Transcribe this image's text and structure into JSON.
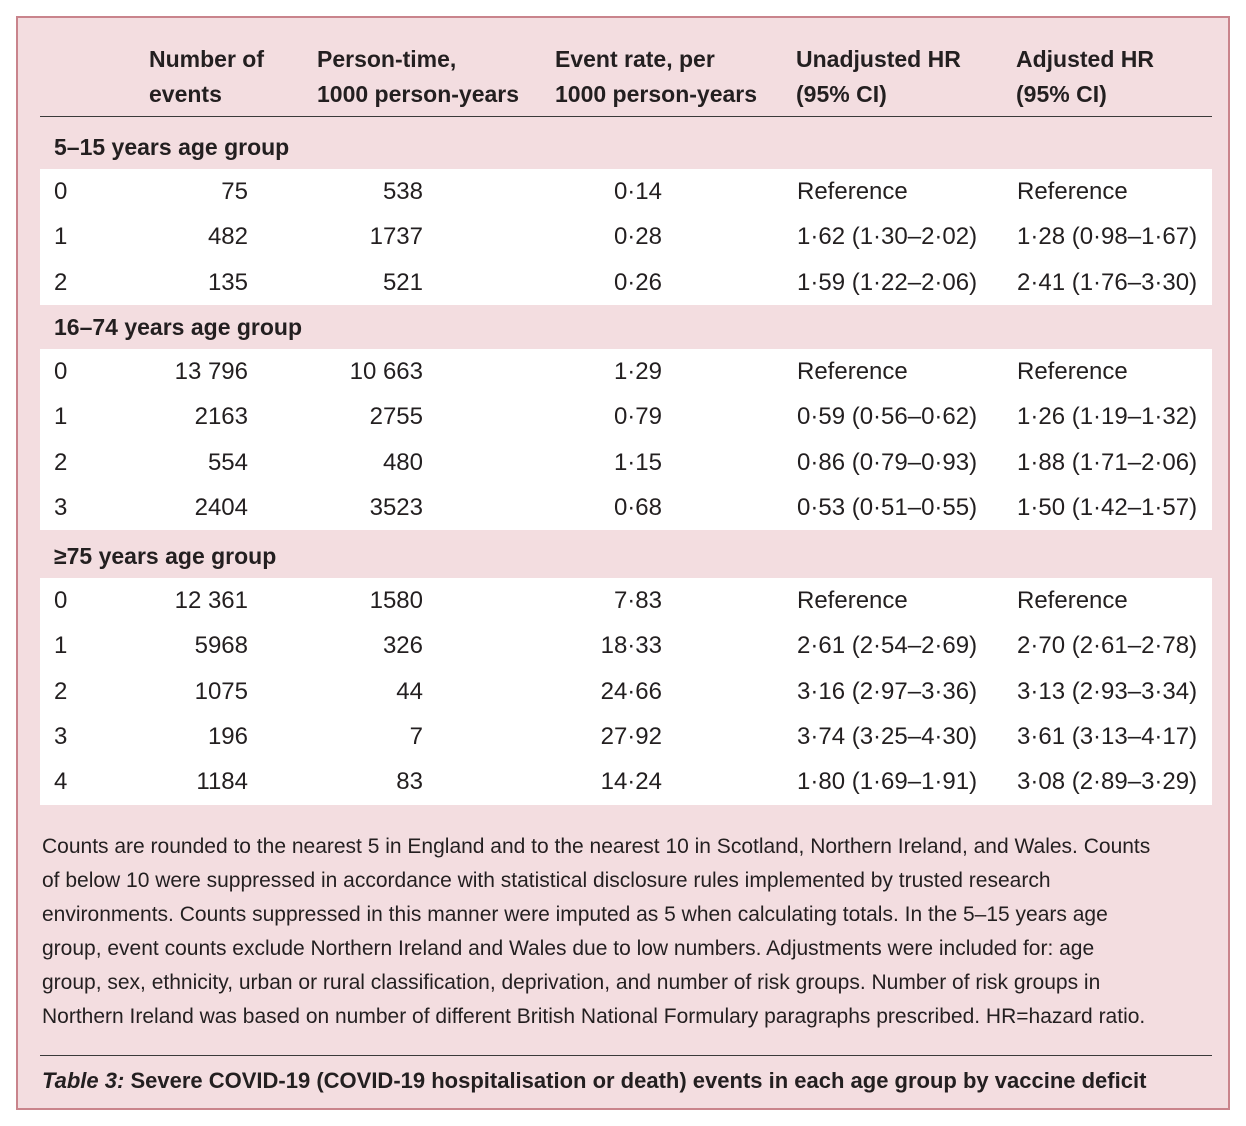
{
  "headers": {
    "events": [
      "Number of",
      "events"
    ],
    "person_time": [
      "Person-time,",
      "1000 person-years"
    ],
    "event_rate": [
      "Event rate, per",
      "1000 person-years"
    ],
    "unadjusted": [
      "Unadjusted HR",
      "(95% CI)"
    ],
    "adjusted": [
      "Adjusted HR",
      "(95% CI)"
    ]
  },
  "groups": [
    {
      "label": "5–15 years age group",
      "rows": [
        [
          "0",
          "75",
          "538",
          "0·14",
          "Reference",
          "Reference"
        ],
        [
          "1",
          "482",
          "1737",
          "0·28",
          "1·62 (1·30–2·02)",
          "1·28 (0·98–1·67)"
        ],
        [
          "2",
          "135",
          "521",
          "0·26",
          "1·59 (1·22–2·06)",
          "2·41 (1·76–3·30)"
        ]
      ]
    },
    {
      "label": "16–74 years age group",
      "rows": [
        [
          "0",
          "13 796",
          "10 663",
          "1·29",
          "Reference",
          "Reference"
        ],
        [
          "1",
          "2163",
          "2755",
          "0·79",
          "0·59 (0·56–0·62)",
          "1·26 (1·19–1·32)"
        ],
        [
          "2",
          "554",
          "480",
          "1·15",
          "0·86 (0·79–0·93)",
          "1·88 (1·71–2·06)"
        ],
        [
          "3",
          "2404",
          "3523",
          "0·68",
          "0·53 (0·51–0·55)",
          "1·50 (1·42–1·57)"
        ]
      ]
    },
    {
      "label": "≥75 years age group",
      "rows": [
        [
          "0",
          "12 361",
          "1580",
          "7·83",
          "Reference",
          "Reference"
        ],
        [
          "1",
          "5968",
          "326",
          "18·33",
          "2·61 (2·54–2·69)",
          "2·70 (2·61–2·78)"
        ],
        [
          "2",
          "1075",
          "44",
          "24·66",
          "3·16 (2·97–3·36)",
          "3·13 (2·93–3·34)"
        ],
        [
          "3",
          "196",
          "7",
          "27·92",
          "3·74 (3·25–4·30)",
          "3·61 (3·13–4·17)"
        ],
        [
          "4",
          "1184",
          "83",
          "14·24",
          "1·80 (1·69–1·91)",
          "3·08 (2·89–3·29)"
        ]
      ]
    }
  ],
  "footnote": [
    "Counts are rounded to the nearest 5 in England and to the nearest 10 in Scotland, Northern Ireland, and Wales. Counts",
    "of below 10 were suppressed in accordance with statistical disclosure rules implemented by trusted research",
    "environments. Counts suppressed in this manner were imputed as 5 when calculating totals. In the 5–15 years age",
    "group, event counts exclude Northern Ireland and Wales due to low numbers. Adjustments were included for: age",
    "group, sex, ethnicity, urban or rural classification, deprivation, and number of risk groups. Number of risk groups in",
    "Northern Ireland was based on number of different British National Formulary paragraphs prescribed. HR=hazard ratio."
  ],
  "caption": {
    "label": "Table 3:",
    "text": " Severe COVID-19 (COVID-19 hospitalisation or death) events in each age group by vaccine deficit"
  },
  "colors": {
    "panel_background": "#f3dde0",
    "border": "#c9848c",
    "row_background": "#ffffff"
  }
}
